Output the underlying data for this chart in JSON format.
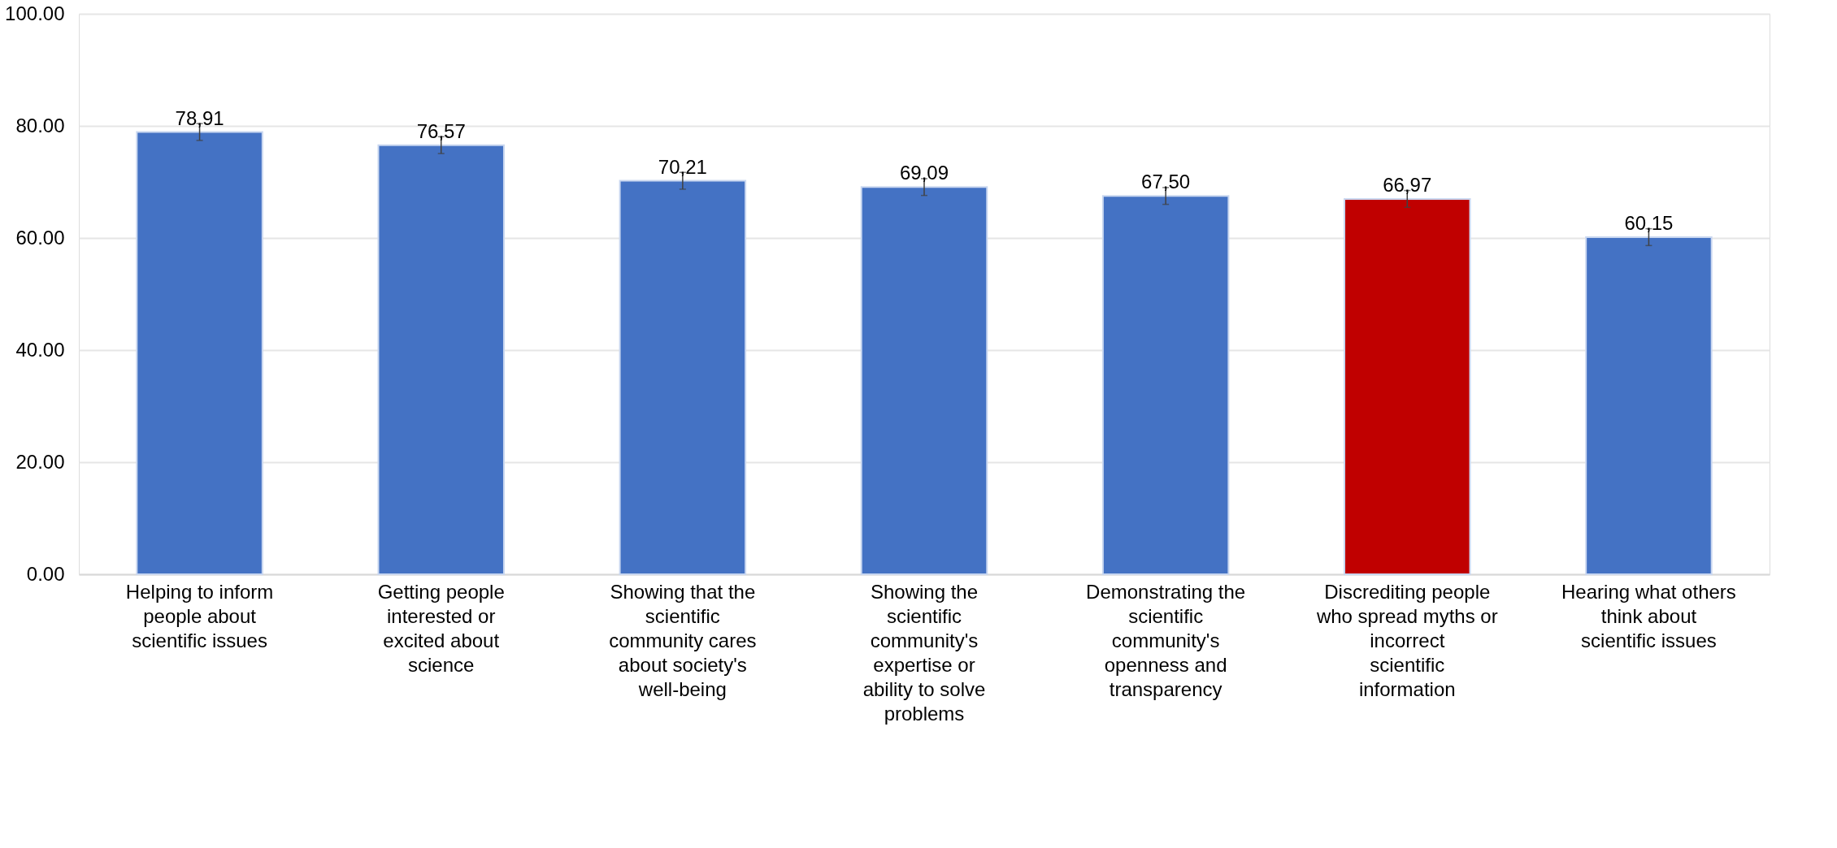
{
  "chart_data": {
    "type": "bar",
    "categories": [
      "Helping to inform people about scientific issues",
      "Getting people interested or excited about science",
      "Showing that the scientific community cares about society's well-being",
      "Showing the scientific community's expertise or ability to solve problems",
      "Demonstrating the scientific community's openness and transparency",
      "Discrediting people who spread myths or incorrect scientific information",
      "Hearing what others think about scientific issues"
    ],
    "values": [
      78.91,
      76.57,
      70.21,
      69.09,
      67.5,
      66.97,
      60.15
    ],
    "value_labels": [
      "78,91",
      "76,57",
      "70,21",
      "69,09",
      "67,50",
      "66,97",
      "60,15"
    ],
    "colors": [
      "#4472c4",
      "#4472c4",
      "#4472c4",
      "#4472c4",
      "#4472c4",
      "#c00000",
      "#4472c4"
    ],
    "errors": [
      1.5,
      1.5,
      1.5,
      1.5,
      1.5,
      1.5,
      1.5
    ],
    "ylim": [
      0,
      100
    ],
    "yticks": [
      {
        "value": 0,
        "label": "0.00"
      },
      {
        "value": 20,
        "label": "20.00"
      },
      {
        "value": 40,
        "label": "40.00"
      },
      {
        "value": 60,
        "label": "60.00"
      },
      {
        "value": 80,
        "label": "80.00"
      },
      {
        "value": 100,
        "label": "100.00"
      }
    ],
    "grid": "y"
  }
}
